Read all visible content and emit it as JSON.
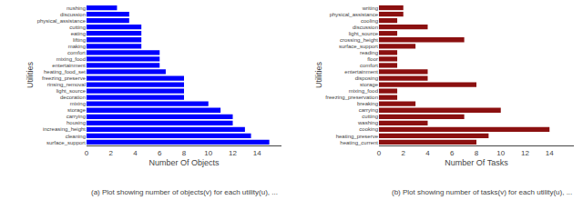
{
  "chart_data": [
    {
      "type": "bar",
      "orientation": "horizontal",
      "categories": [
        "nushing",
        "discussion",
        "physical_assistance",
        "cutting",
        "eating",
        "lifting",
        "making",
        "comfort",
        "mixing_food",
        "entertainment",
        "heating_food_set",
        "freezing_preserve",
        "rinsing_removal",
        "light_source",
        "decoration",
        "mixing",
        "storage",
        "carrying",
        "housing",
        "increasing_height",
        "cleaning",
        "surface_support"
      ],
      "values": [
        2.5,
        3.5,
        3.5,
        4.5,
        4.5,
        4.5,
        4.5,
        6,
        6,
        6,
        6.5,
        8,
        8,
        8,
        8,
        10,
        11,
        12,
        12,
        13,
        13.5,
        15
      ],
      "color": "#0000FF",
      "xlabel": "Number Of Objects",
      "ylabel": "Utilities",
      "xlim": [
        0,
        16
      ],
      "xticks": [
        0,
        2,
        4,
        6,
        8,
        10,
        12,
        14
      ],
      "grid": false,
      "annotations": [
        "(a) Plot showing number of objects(v) for each utility(u), ..."
      ]
    },
    {
      "type": "bar",
      "orientation": "horizontal",
      "categories": [
        "writing",
        "physical_assistance",
        "cooling",
        "discussion",
        "light_source",
        "crossing_height",
        "surface_support",
        "reading",
        "floor",
        "comfort",
        "entertainment",
        "disposing",
        "storage",
        "mixing_food",
        "freezing_preservation",
        "breaking",
        "carrying",
        "cutting",
        "washing",
        "cooking",
        "heating_preserve",
        "heating_current"
      ],
      "values": [
        2,
        2,
        1.5,
        4,
        1.5,
        7,
        3,
        1.5,
        1.5,
        1.5,
        4,
        4,
        8,
        1.5,
        1.5,
        3,
        10,
        7,
        4,
        14,
        9,
        8
      ],
      "color": "#8B1010",
      "xlabel": "Number Of Tasks",
      "ylabel": "Utilities",
      "xlim": [
        0,
        16
      ],
      "xticks": [
        0,
        2,
        4,
        6,
        8,
        10,
        12,
        14
      ],
      "grid": false,
      "annotations": [
        "(b) Plot showing number of tasks(v) for each utility(u), ..."
      ]
    }
  ]
}
